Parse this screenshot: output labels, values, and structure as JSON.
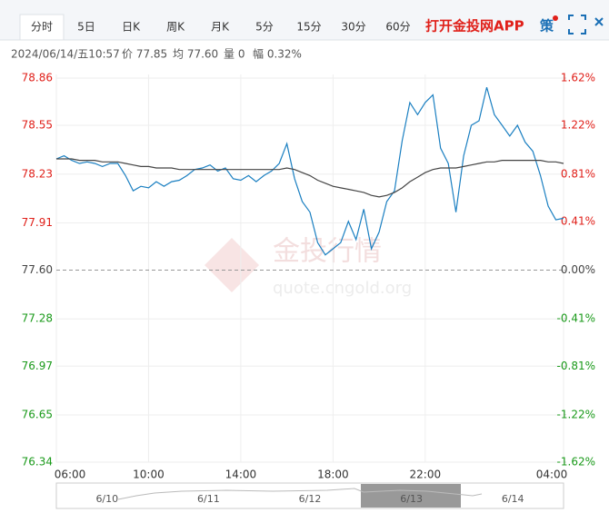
{
  "toolbar": {
    "tabs": [
      "分时",
      "5日",
      "日K",
      "周K",
      "月K",
      "5分",
      "15分",
      "30分",
      "60分"
    ],
    "promo": "打开金投网APP",
    "icon": "策"
  },
  "info": {
    "datetime": "2024/06/14/五10:57",
    "price": "价 77.85",
    "average": "均 77.60",
    "volume": "量 0",
    "change": "幅 0.32%"
  },
  "chart_data": {
    "type": "line",
    "x": [
      "06:00",
      "06:20",
      "06:40",
      "07:00",
      "07:20",
      "07:40",
      "08:00",
      "08:20",
      "08:40",
      "09:00",
      "09:20",
      "09:40",
      "10:00",
      "10:20",
      "10:40",
      "11:00",
      "11:20",
      "11:40",
      "12:00",
      "12:20",
      "12:40",
      "13:00",
      "13:20",
      "13:40",
      "14:00",
      "14:20",
      "14:40",
      "15:00",
      "15:20",
      "15:40",
      "16:00",
      "16:20",
      "16:40",
      "17:00",
      "17:20",
      "17:40",
      "18:00",
      "18:20",
      "18:40",
      "19:00",
      "19:20",
      "19:40",
      "20:00",
      "20:20",
      "20:40",
      "21:00",
      "21:20",
      "21:40",
      "22:00",
      "22:20",
      "22:40",
      "23:00",
      "23:20",
      "23:40",
      "00:00",
      "00:20",
      "00:40",
      "01:00",
      "01:20",
      "01:40",
      "02:00",
      "02:20",
      "02:40",
      "03:00",
      "03:20",
      "03:40",
      "04:00"
    ],
    "xlim": [
      "06:00",
      "04:00"
    ],
    "xticks": [
      "06:00",
      "10:00",
      "14:00",
      "18:00",
      "22:00",
      "04:00"
    ],
    "ylim": [
      76.34,
      78.86
    ],
    "yticks": [
      78.86,
      78.55,
      78.23,
      77.91,
      {
        "value": 77.6,
        "label": "77.60"
      },
      77.28,
      76.97,
      76.65,
      76.34
    ],
    "y2lim": [
      -1.62,
      1.62
    ],
    "y2ticks": [
      {
        "value": 1.62,
        "label": "1.62%"
      },
      {
        "value": 1.22,
        "label": "1.22%"
      },
      {
        "value": 0.81,
        "label": "0.81%"
      },
      {
        "value": 0.41,
        "label": "0.41%"
      },
      {
        "value": 0,
        "label": "0.00%"
      },
      {
        "value": -0.41,
        "label": "-0.41%"
      },
      {
        "value": -0.81,
        "label": "-0.81%"
      },
      {
        "value": -1.22,
        "label": "-1.22%"
      },
      {
        "value": -1.62,
        "label": "-1.62%"
      }
    ],
    "grid": true,
    "up_color": "#e0201a",
    "down_color": "#1a9a1a",
    "flat_color": "#444",
    "series": [
      {
        "color": "#1a7fc1",
        "values": [
          78.33,
          78.35,
          78.32,
          78.3,
          78.31,
          78.3,
          78.28,
          78.3,
          78.3,
          78.22,
          78.12,
          78.15,
          78.14,
          78.18,
          78.15,
          78.18,
          78.19,
          78.22,
          78.26,
          78.27,
          78.29,
          78.25,
          78.27,
          78.2,
          78.19,
          78.22,
          78.18,
          78.22,
          78.25,
          78.3,
          78.43,
          78.2,
          78.05,
          77.98,
          77.78,
          77.7,
          77.74,
          77.78,
          77.92,
          77.8,
          78.0,
          77.74,
          77.85,
          78.05,
          78.12,
          78.45,
          78.7,
          78.62,
          78.7,
          78.75,
          78.4,
          78.3,
          77.98,
          78.35,
          78.55,
          78.58,
          78.8,
          78.62,
          78.55,
          78.48,
          78.55,
          78.44,
          78.38,
          78.22,
          78.02,
          77.93,
          77.94
        ]
      },
      {
        "color": "#444444",
        "values": [
          78.33,
          78.33,
          78.33,
          78.32,
          78.32,
          78.32,
          78.31,
          78.31,
          78.31,
          78.3,
          78.29,
          78.28,
          78.28,
          78.27,
          78.27,
          78.27,
          78.26,
          78.26,
          78.26,
          78.26,
          78.26,
          78.26,
          78.26,
          78.26,
          78.26,
          78.26,
          78.26,
          78.26,
          78.26,
          78.26,
          78.27,
          78.26,
          78.24,
          78.22,
          78.19,
          78.17,
          78.15,
          78.14,
          78.13,
          78.12,
          78.11,
          78.09,
          78.08,
          78.09,
          78.11,
          78.14,
          78.18,
          78.21,
          78.24,
          78.26,
          78.27,
          78.27,
          78.27,
          78.28,
          78.29,
          78.3,
          78.31,
          78.31,
          78.32,
          78.32,
          78.32,
          78.32,
          78.32,
          78.32,
          78.31,
          78.31,
          78.3
        ]
      }
    ]
  },
  "watermark": {
    "title": "金投行情",
    "url": "quote.cngold.org"
  },
  "navigator": {
    "dates": [
      "6/10",
      "6/11",
      "6/12",
      "6/13",
      "6/14"
    ]
  }
}
